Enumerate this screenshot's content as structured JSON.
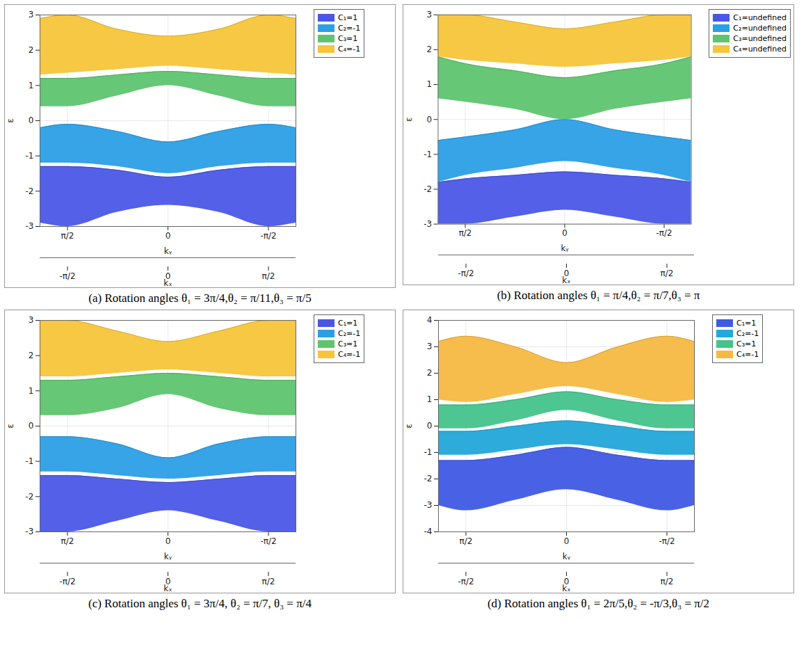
{
  "chart_data": [
    {
      "type": "area",
      "title": "(a) Rotation angles θ₁ = 3π/4,θ₂ = π/11,θ₃ = π/5",
      "x_label": "kᵧ",
      "y_label": "ε",
      "legend": "right",
      "grid": true,
      "x": [
        2,
        1.5708,
        0.8,
        0,
        -0.8,
        -1.5708,
        -2
      ],
      "xlim": [
        2,
        -2
      ],
      "xticks": [
        {
          "value": 1.5708,
          "label": "π/2"
        },
        0,
        {
          "value": -1.5708,
          "label": "-π/2"
        }
      ],
      "ylim": [
        -3,
        3
      ],
      "yticks": [
        -3,
        -2,
        -1,
        0,
        1,
        2,
        3
      ],
      "kx_axis": {
        "label": "kₓ",
        "xlim": [
          -2,
          2
        ],
        "xticks": [
          {
            "value": -1.5708,
            "label": "-π/2"
          },
          0,
          {
            "value": 1.5708,
            "label": "π/2"
          }
        ]
      },
      "series": [
        {
          "name": "C₁=1",
          "color": "#4a57e6",
          "upper": [
            -1.3,
            -1.3,
            -1.4,
            -1.6,
            -1.4,
            -1.3,
            -1.3
          ],
          "lower": [
            -2.9,
            -3.0,
            -2.6,
            -2.4,
            -2.6,
            -3.0,
            -2.9
          ]
        },
        {
          "name": "C₂=-1",
          "color": "#2b9fe6",
          "upper": [
            -0.2,
            -0.1,
            -0.3,
            -0.6,
            -0.3,
            -0.1,
            -0.2
          ],
          "lower": [
            -1.2,
            -1.2,
            -1.3,
            -1.5,
            -1.3,
            -1.2,
            -1.2
          ]
        },
        {
          "name": "C₃=1",
          "color": "#5ec46f",
          "upper": [
            1.2,
            1.2,
            1.3,
            1.4,
            1.3,
            1.2,
            1.2
          ],
          "lower": [
            0.4,
            0.4,
            0.7,
            1.0,
            0.7,
            0.4,
            0.4
          ]
        },
        {
          "name": "C₄=-1",
          "color": "#f7c53a",
          "upper": [
            2.9,
            3.0,
            2.6,
            2.4,
            2.6,
            3.0,
            2.9
          ],
          "lower": [
            1.3,
            1.35,
            1.45,
            1.55,
            1.45,
            1.35,
            1.3
          ]
        }
      ]
    },
    {
      "type": "area",
      "title": "(b) Rotation angles θ₁ = π/4,θ₂ = π/7,θ₃ = π",
      "x_label": "kᵧ",
      "y_label": "ε",
      "legend": "right",
      "grid": true,
      "x": [
        2,
        1.5708,
        0.8,
        0,
        -0.8,
        -1.5708,
        -2
      ],
      "xlim": [
        2,
        -2
      ],
      "xticks": [
        {
          "value": 1.5708,
          "label": "π/2"
        },
        0,
        {
          "value": -1.5708,
          "label": "-π/2"
        }
      ],
      "ylim": [
        -3,
        3
      ],
      "yticks": [
        -3,
        -2,
        -1,
        0,
        1,
        2,
        3
      ],
      "kx_axis": {
        "label": "kₓ",
        "xlim": [
          -2,
          2
        ],
        "xticks": [
          {
            "value": -1.5708,
            "label": "-π/2"
          },
          0,
          {
            "value": 1.5708,
            "label": "π/2"
          }
        ]
      },
      "series": [
        {
          "name": "C₁=undefined",
          "color": "#4a57e6",
          "upper": [
            -1.8,
            -1.7,
            -1.6,
            -1.5,
            -1.6,
            -1.7,
            -1.8
          ],
          "lower": [
            -3.0,
            -3.0,
            -2.8,
            -2.6,
            -2.8,
            -3.0,
            -3.0
          ]
        },
        {
          "name": "C₂=undefined",
          "color": "#2b9fe6",
          "upper": [
            -0.6,
            -0.5,
            -0.3,
            0.0,
            -0.3,
            -0.5,
            -0.6
          ],
          "lower": [
            -1.8,
            -1.6,
            -1.4,
            -1.2,
            -1.4,
            -1.6,
            -1.8
          ]
        },
        {
          "name": "C₃=undefined",
          "color": "#5ec46f",
          "upper": [
            1.8,
            1.6,
            1.4,
            1.2,
            1.4,
            1.6,
            1.8
          ],
          "lower": [
            0.6,
            0.5,
            0.3,
            0.0,
            0.3,
            0.5,
            0.6
          ]
        },
        {
          "name": "C₄=undefined",
          "color": "#f7c53a",
          "upper": [
            3.0,
            3.0,
            2.8,
            2.6,
            2.8,
            3.0,
            3.0
          ],
          "lower": [
            1.8,
            1.7,
            1.6,
            1.5,
            1.6,
            1.7,
            1.8
          ]
        }
      ]
    },
    {
      "type": "area",
      "title": "(c) Rotation angles θ₁ = 3π/4, θ₂ = π/7, θ₃ = π/4",
      "x_label": "kᵧ",
      "y_label": "ε",
      "legend": "right",
      "grid": true,
      "x": [
        2,
        1.5708,
        0.8,
        0,
        -0.8,
        -1.5708,
        -2
      ],
      "xlim": [
        2,
        -2
      ],
      "xticks": [
        {
          "value": 1.5708,
          "label": "π/2"
        },
        0,
        {
          "value": -1.5708,
          "label": "-π/2"
        }
      ],
      "ylim": [
        -3,
        3
      ],
      "yticks": [
        -3,
        -2,
        -1,
        0,
        1,
        2,
        3
      ],
      "kx_axis": {
        "label": "kₓ",
        "xlim": [
          -2,
          2
        ],
        "xticks": [
          {
            "value": -1.5708,
            "label": "-π/2"
          },
          0,
          {
            "value": 1.5708,
            "label": "π/2"
          }
        ]
      },
      "series": [
        {
          "name": "C₁=1",
          "color": "#4a57e6",
          "upper": [
            -1.4,
            -1.4,
            -1.5,
            -1.6,
            -1.5,
            -1.4,
            -1.4
          ],
          "lower": [
            -3.0,
            -3.0,
            -2.7,
            -2.4,
            -2.7,
            -3.0,
            -3.0
          ]
        },
        {
          "name": "C₂=-1",
          "color": "#2b9fe6",
          "upper": [
            -0.3,
            -0.3,
            -0.5,
            -0.9,
            -0.5,
            -0.3,
            -0.3
          ],
          "lower": [
            -1.3,
            -1.3,
            -1.4,
            -1.5,
            -1.4,
            -1.3,
            -1.3
          ]
        },
        {
          "name": "C₃=1",
          "color": "#5ec46f",
          "upper": [
            1.3,
            1.3,
            1.4,
            1.5,
            1.4,
            1.3,
            1.3
          ],
          "lower": [
            0.3,
            0.3,
            0.5,
            0.9,
            0.5,
            0.3,
            0.3
          ]
        },
        {
          "name": "C₄=-1",
          "color": "#f7c53a",
          "upper": [
            3.0,
            3.0,
            2.7,
            2.4,
            2.7,
            3.0,
            3.0
          ],
          "lower": [
            1.4,
            1.4,
            1.5,
            1.6,
            1.5,
            1.4,
            1.4
          ]
        }
      ]
    },
    {
      "type": "area",
      "title": "(d) Rotation angles θ₁ = 2π/5,θ₂ = -π/3,θ₃ = π/2",
      "x_label": "kᵧ",
      "y_label": "ε",
      "legend": "right",
      "grid": true,
      "x": [
        2,
        1.5708,
        0.8,
        0,
        -0.8,
        -1.5708,
        -2
      ],
      "xlim": [
        2,
        -2
      ],
      "xticks": [
        {
          "value": 1.5708,
          "label": "π/2"
        },
        0,
        {
          "value": -1.5708,
          "label": "-π/2"
        }
      ],
      "ylim": [
        -4,
        4
      ],
      "yticks": [
        -4,
        -3,
        -2,
        -1,
        0,
        1,
        2,
        3,
        4
      ],
      "kx_axis": {
        "label": "kₓ",
        "xlim": [
          -2,
          2
        ],
        "xticks": [
          {
            "value": -1.5708,
            "label": "-π/2"
          },
          0,
          {
            "value": 1.5708,
            "label": "π/2"
          }
        ]
      },
      "series": [
        {
          "name": "C₁=1",
          "color": "#3f5ae4",
          "upper": [
            -1.3,
            -1.3,
            -1.1,
            -0.8,
            -1.1,
            -1.3,
            -1.3
          ],
          "lower": [
            -3.0,
            -3.2,
            -2.8,
            -2.4,
            -2.8,
            -3.2,
            -3.0
          ]
        },
        {
          "name": "C₂=-1",
          "color": "#22a8da",
          "upper": [
            -0.2,
            -0.2,
            0.0,
            0.2,
            0.0,
            -0.2,
            -0.2
          ],
          "lower": [
            -1.1,
            -1.1,
            -0.9,
            -0.7,
            -0.9,
            -1.1,
            -1.1
          ]
        },
        {
          "name": "C₃=1",
          "color": "#45c38b",
          "upper": [
            0.8,
            0.8,
            1.0,
            1.3,
            1.0,
            0.8,
            0.8
          ],
          "lower": [
            -0.1,
            -0.1,
            0.2,
            0.6,
            0.2,
            -0.1,
            -0.1
          ]
        },
        {
          "name": "C₄=-1",
          "color": "#f6b942",
          "upper": [
            3.2,
            3.4,
            3.0,
            2.4,
            3.0,
            3.4,
            3.2
          ],
          "lower": [
            1.0,
            0.9,
            1.2,
            1.5,
            1.2,
            0.9,
            1.0
          ]
        }
      ]
    }
  ]
}
